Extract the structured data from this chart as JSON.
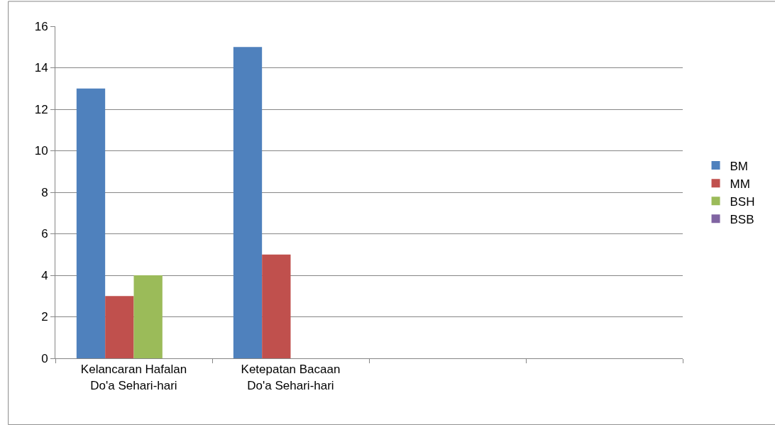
{
  "chart_data": {
    "type": "bar",
    "categories": [
      "Kelancaran Hafalan Do'a Sehari-hari",
      "Ketepatan Bacaan Do'a Sehari-hari",
      null,
      null
    ],
    "series": [
      {
        "name": "BM",
        "color": "#4f81bd",
        "values": [
          13,
          15,
          null,
          null
        ]
      },
      {
        "name": "MM",
        "color": "#c0504d",
        "values": [
          3,
          5,
          null,
          null
        ]
      },
      {
        "name": "BSH",
        "color": "#9bbb59",
        "values": [
          4,
          null,
          null,
          null
        ]
      },
      {
        "name": "BSB",
        "color": "#8064a2",
        "values": [
          null,
          null,
          null,
          null
        ]
      }
    ],
    "ylim": [
      0,
      16
    ],
    "yticks": [
      0,
      2,
      4,
      6,
      8,
      10,
      12,
      14,
      16
    ],
    "grid": "y",
    "legend": "right"
  }
}
